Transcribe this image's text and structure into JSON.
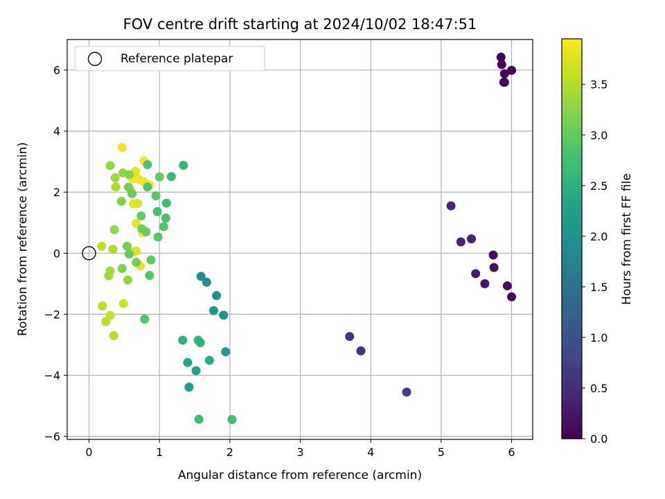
{
  "chart_data": {
    "type": "scatter",
    "title": "FOV centre drift starting at 2024/10/02 18:47:51",
    "xlabel": "Angular distance from reference (arcmin)",
    "ylabel": "Rotation from reference (arcmin)",
    "xlim": [
      -0.31,
      6.3
    ],
    "ylim": [
      -6.1,
      7.0
    ],
    "xticks": [
      0,
      1,
      2,
      3,
      4,
      5,
      6
    ],
    "yticks": [
      -6,
      -4,
      -2,
      0,
      2,
      4,
      6
    ],
    "grid": true,
    "legend": {
      "placement": "upper-left",
      "entries": [
        "Reference platepar"
      ]
    },
    "reference_point": {
      "x": 0,
      "y": 0,
      "label": "Reference platepar"
    },
    "colorbar": {
      "label": "Hours from first FF file",
      "colormap": "viridis",
      "range": [
        0.0,
        3.95
      ],
      "ticks": [
        "0.0",
        "0.5",
        "1.0",
        "1.5",
        "2.0",
        "2.5",
        "3.0",
        "3.5"
      ]
    },
    "points": [
      {
        "x": 5.85,
        "y": 6.42,
        "c": 0.03
      },
      {
        "x": 5.86,
        "y": 6.18,
        "c": 0.05
      },
      {
        "x": 5.9,
        "y": 5.88,
        "c": 0.06
      },
      {
        "x": 6.0,
        "y": 5.99,
        "c": 0.04
      },
      {
        "x": 5.89,
        "y": 5.6,
        "c": 0.07
      },
      {
        "x": 5.9,
        "y": 5.6,
        "c": 0.08
      },
      {
        "x": 5.14,
        "y": 1.55,
        "c": 0.45
      },
      {
        "x": 5.28,
        "y": 0.37,
        "c": 0.4
      },
      {
        "x": 5.43,
        "y": 0.47,
        "c": 0.38
      },
      {
        "x": 5.74,
        "y": -0.06,
        "c": 0.12
      },
      {
        "x": 5.75,
        "y": -0.47,
        "c": 0.15
      },
      {
        "x": 5.49,
        "y": -0.67,
        "c": 0.28
      },
      {
        "x": 5.62,
        "y": -1.0,
        "c": 0.22
      },
      {
        "x": 5.94,
        "y": -1.07,
        "c": 0.13
      },
      {
        "x": 6.0,
        "y": -1.43,
        "c": 0.1
      },
      {
        "x": 3.7,
        "y": -2.73,
        "c": 0.6
      },
      {
        "x": 3.86,
        "y": -3.2,
        "c": 0.55
      },
      {
        "x": 4.51,
        "y": -4.55,
        "c": 0.72
      },
      {
        "x": 1.59,
        "y": -0.76,
        "c": 1.9
      },
      {
        "x": 1.67,
        "y": -0.95,
        "c": 1.95
      },
      {
        "x": 1.81,
        "y": -1.39,
        "c": 2.0
      },
      {
        "x": 1.77,
        "y": -1.88,
        "c": 2.05
      },
      {
        "x": 1.91,
        "y": -2.03,
        "c": 1.98
      },
      {
        "x": 1.94,
        "y": -3.23,
        "c": 2.1
      },
      {
        "x": 1.33,
        "y": -2.85,
        "c": 2.5
      },
      {
        "x": 1.55,
        "y": -2.85,
        "c": 2.6
      },
      {
        "x": 1.58,
        "y": -2.93,
        "c": 2.55
      },
      {
        "x": 1.71,
        "y": -3.51,
        "c": 2.45
      },
      {
        "x": 1.4,
        "y": -3.58,
        "c": 2.3
      },
      {
        "x": 1.52,
        "y": -3.85,
        "c": 2.25
      },
      {
        "x": 1.42,
        "y": -4.39,
        "c": 2.2
      },
      {
        "x": 1.56,
        "y": -5.44,
        "c": 2.7
      },
      {
        "x": 2.03,
        "y": -5.45,
        "c": 2.75
      },
      {
        "x": 1.34,
        "y": 2.88,
        "c": 2.6
      },
      {
        "x": 1.17,
        "y": 2.51,
        "c": 2.65
      },
      {
        "x": 1.1,
        "y": 1.64,
        "c": 2.7
      },
      {
        "x": 0.97,
        "y": 1.36,
        "c": 2.75
      },
      {
        "x": 1.09,
        "y": 1.15,
        "c": 2.8
      },
      {
        "x": 1.06,
        "y": 0.87,
        "c": 2.85
      },
      {
        "x": 0.98,
        "y": 0.53,
        "c": 2.9
      },
      {
        "x": 0.83,
        "y": 2.9,
        "c": 2.8
      },
      {
        "x": 0.83,
        "y": 2.17,
        "c": 2.85
      },
      {
        "x": 0.95,
        "y": 1.88,
        "c": 2.9
      },
      {
        "x": 1.0,
        "y": 2.5,
        "c": 3.0
      },
      {
        "x": 0.74,
        "y": 1.22,
        "c": 3.0
      },
      {
        "x": 0.81,
        "y": 0.7,
        "c": 3.05
      },
      {
        "x": 0.75,
        "y": 0.8,
        "c": 3.1
      },
      {
        "x": 0.88,
        "y": -0.22,
        "c": 2.95
      },
      {
        "x": 0.86,
        "y": -0.73,
        "c": 2.9
      },
      {
        "x": 0.79,
        "y": -2.16,
        "c": 2.85
      },
      {
        "x": 0.61,
        "y": 1.95,
        "c": 3.0
      },
      {
        "x": 0.56,
        "y": 2.16,
        "c": 3.1
      },
      {
        "x": 0.46,
        "y": 1.7,
        "c": 3.2
      },
      {
        "x": 0.57,
        "y": 2.57,
        "c": 3.2
      },
      {
        "x": 0.48,
        "y": 2.63,
        "c": 3.3
      },
      {
        "x": 0.37,
        "y": 2.47,
        "c": 3.35
      },
      {
        "x": 0.3,
        "y": 2.87,
        "c": 3.3
      },
      {
        "x": 0.38,
        "y": 2.17,
        "c": 3.45
      },
      {
        "x": 0.36,
        "y": 0.77,
        "c": 3.3
      },
      {
        "x": 0.34,
        "y": 0.13,
        "c": 3.45
      },
      {
        "x": 0.54,
        "y": 0.23,
        "c": 3.1
      },
      {
        "x": 0.57,
        "y": -0.03,
        "c": 3.0
      },
      {
        "x": 0.67,
        "y": -0.3,
        "c": 3.1
      },
      {
        "x": 0.47,
        "y": -0.5,
        "c": 3.2
      },
      {
        "x": 0.3,
        "y": -0.58,
        "c": 3.4
      },
      {
        "x": 0.28,
        "y": -0.74,
        "c": 3.4
      },
      {
        "x": 0.55,
        "y": -0.88,
        "c": 3.3
      },
      {
        "x": 0.18,
        "y": 0.23,
        "c": 3.55
      },
      {
        "x": 0.19,
        "y": -1.73,
        "c": 3.55
      },
      {
        "x": 0.49,
        "y": -1.65,
        "c": 3.65
      },
      {
        "x": 0.3,
        "y": -2.04,
        "c": 3.6
      },
      {
        "x": 0.24,
        "y": -2.24,
        "c": 3.55
      },
      {
        "x": 0.35,
        "y": -2.7,
        "c": 3.5
      },
      {
        "x": 0.47,
        "y": 3.46,
        "c": 3.85
      },
      {
        "x": 0.78,
        "y": 3.02,
        "c": 3.9
      },
      {
        "x": 0.66,
        "y": 2.68,
        "c": 3.8
      },
      {
        "x": 0.62,
        "y": 2.44,
        "c": 3.85
      },
      {
        "x": 0.71,
        "y": 2.42,
        "c": 3.85
      },
      {
        "x": 0.78,
        "y": 2.34,
        "c": 3.9
      },
      {
        "x": 0.86,
        "y": 2.24,
        "c": 3.9
      },
      {
        "x": 0.59,
        "y": 2.08,
        "c": 3.75
      },
      {
        "x": 0.63,
        "y": 1.62,
        "c": 3.8
      },
      {
        "x": 0.69,
        "y": 1.63,
        "c": 3.75
      },
      {
        "x": 0.67,
        "y": 0.98,
        "c": 3.8
      },
      {
        "x": 0.76,
        "y": 0.67,
        "c": 3.9
      },
      {
        "x": 0.67,
        "y": 0.07,
        "c": 3.75
      },
      {
        "x": 0.62,
        "y": 0.04,
        "c": 3.7
      },
      {
        "x": 0.73,
        "y": -0.42,
        "c": 3.85
      }
    ]
  }
}
